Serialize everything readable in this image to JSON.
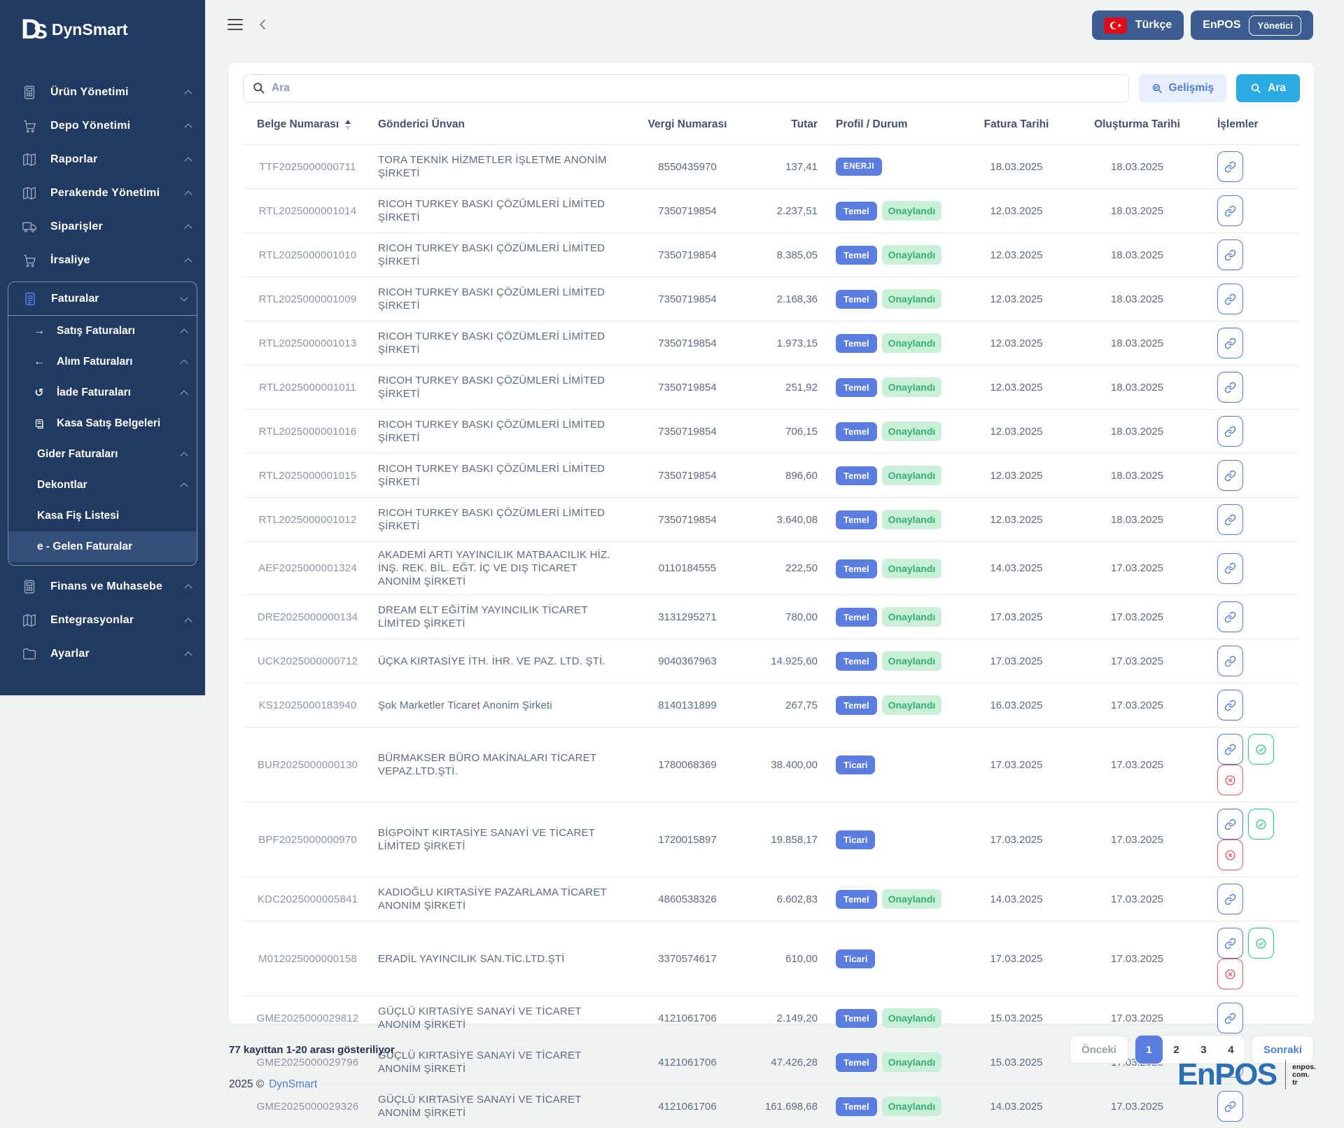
{
  "brand": {
    "logo_d": "D",
    "logo_s": "S",
    "name": "DynSmart",
    "footer_year": "2025 ©",
    "footer_brand": "DynSmart",
    "enpos_logo": "EnPOS",
    "enpos_domain_lines": [
      "enpos.",
      "com.",
      "tr"
    ]
  },
  "topbar": {
    "language_label": "Türkçe",
    "company_label": "EnPOS",
    "user_role_label": "Yönetici"
  },
  "search": {
    "placeholder": "Ara",
    "advanced_label": "Gelişmiş",
    "search_label": "Ara"
  },
  "sidebar": {
    "items_top": [
      {
        "label": "Ürün Yönetimi",
        "icon": "calculator",
        "chevron": true
      },
      {
        "label": "Depo Yönetimi",
        "icon": "cart",
        "chevron": true
      },
      {
        "label": "Raporlar",
        "icon": "map",
        "chevron": true
      },
      {
        "label": "Perakende Yönetimi",
        "icon": "map",
        "chevron": true
      },
      {
        "label": "Siparişler",
        "icon": "truck",
        "chevron": true
      },
      {
        "label": "İrsaliye",
        "icon": "cart",
        "chevron": true
      }
    ],
    "group": {
      "label": "Faturalar",
      "icon": "invoice",
      "chevron": true,
      "items": [
        {
          "label": "Satış Faturaları",
          "icon": "arrow-right",
          "chevron": true,
          "active": false
        },
        {
          "label": "Alım Faturaları",
          "icon": "arrow-left",
          "chevron": true,
          "active": false
        },
        {
          "label": "İade Faturaları",
          "icon": "rotate-left",
          "chevron": true,
          "active": false
        },
        {
          "label": "Kasa Satış Belgeleri",
          "icon": "receipt",
          "chevron": false,
          "active": false
        },
        {
          "label": "Gider Faturaları",
          "icon": null,
          "chevron": true,
          "active": false
        },
        {
          "label": "Dekontlar",
          "icon": null,
          "chevron": true,
          "active": false
        },
        {
          "label": "Kasa Fiş Listesi",
          "icon": null,
          "chevron": false,
          "active": false
        },
        {
          "label": "e - Gelen Faturalar",
          "icon": null,
          "chevron": false,
          "active": true
        }
      ]
    },
    "items_bottom": [
      {
        "label": "Finans ve Muhasebe",
        "icon": "calculator",
        "chevron": true
      },
      {
        "label": "Entegrasyonlar",
        "icon": "map",
        "chevron": true
      },
      {
        "label": "Ayarlar",
        "icon": "folder",
        "chevron": true
      }
    ]
  },
  "table": {
    "columns": [
      "Belge Numarası",
      "Gönderici Ünvan",
      "Vergi Numarası",
      "Tutar",
      "Profil / Durum",
      "Fatura Tarihi",
      "Oluşturma Tarihi",
      "İşlemler"
    ],
    "rows": [
      {
        "doc_no": "TTF2025000000711",
        "sender": "TORA TEKNİK HİZMETLER İŞLETME ANONİM ŞİRKETİ",
        "tax_no": "8550435970",
        "amount": "137,41",
        "profile": "ENERJI",
        "status": "",
        "invoice_date": "18.03.2025",
        "created_date": "18.03.2025",
        "actions": [
          "link"
        ]
      },
      {
        "doc_no": "RTL2025000001014",
        "sender": "RICOH TURKEY BASKI ÇÖZÜMLERİ LİMİTED ŞİRKETİ",
        "tax_no": "7350719854",
        "amount": "2.237,51",
        "profile": "Temel",
        "status": "Onaylandı",
        "invoice_date": "12.03.2025",
        "created_date": "18.03.2025",
        "actions": [
          "link"
        ]
      },
      {
        "doc_no": "RTL2025000001010",
        "sender": "RICOH TURKEY BASKI ÇÖZÜMLERİ LİMİTED ŞİRKETİ",
        "tax_no": "7350719854",
        "amount": "8.385,05",
        "profile": "Temel",
        "status": "Onaylandı",
        "invoice_date": "12.03.2025",
        "created_date": "18.03.2025",
        "actions": [
          "link"
        ]
      },
      {
        "doc_no": "RTL2025000001009",
        "sender": "RICOH TURKEY BASKI ÇÖZÜMLERİ LİMİTED ŞİRKETİ",
        "tax_no": "7350719854",
        "amount": "2.168,36",
        "profile": "Temel",
        "status": "Onaylandı",
        "invoice_date": "12.03.2025",
        "created_date": "18.03.2025",
        "actions": [
          "link"
        ]
      },
      {
        "doc_no": "RTL2025000001013",
        "sender": "RICOH TURKEY BASKI ÇÖZÜMLERİ LİMİTED ŞİRKETİ",
        "tax_no": "7350719854",
        "amount": "1.973,15",
        "profile": "Temel",
        "status": "Onaylandı",
        "invoice_date": "12.03.2025",
        "created_date": "18.03.2025",
        "actions": [
          "link"
        ]
      },
      {
        "doc_no": "RTL2025000001011",
        "sender": "RICOH TURKEY BASKI ÇÖZÜMLERİ LİMİTED ŞİRKETİ",
        "tax_no": "7350719854",
        "amount": "251,92",
        "profile": "Temel",
        "status": "Onaylandı",
        "invoice_date": "12.03.2025",
        "created_date": "18.03.2025",
        "actions": [
          "link"
        ]
      },
      {
        "doc_no": "RTL2025000001016",
        "sender": "RICOH TURKEY BASKI ÇÖZÜMLERİ LİMİTED ŞİRKETİ",
        "tax_no": "7350719854",
        "amount": "706,15",
        "profile": "Temel",
        "status": "Onaylandı",
        "invoice_date": "12.03.2025",
        "created_date": "18.03.2025",
        "actions": [
          "link"
        ]
      },
      {
        "doc_no": "RTL2025000001015",
        "sender": "RICOH TURKEY BASKI ÇÖZÜMLERİ LİMİTED ŞİRKETİ",
        "tax_no": "7350719854",
        "amount": "896,60",
        "profile": "Temel",
        "status": "Onaylandı",
        "invoice_date": "12.03.2025",
        "created_date": "18.03.2025",
        "actions": [
          "link"
        ]
      },
      {
        "doc_no": "RTL2025000001012",
        "sender": "RICOH TURKEY BASKI ÇÖZÜMLERİ LİMİTED ŞİRKETİ",
        "tax_no": "7350719854",
        "amount": "3.640,08",
        "profile": "Temel",
        "status": "Onaylandı",
        "invoice_date": "12.03.2025",
        "created_date": "18.03.2025",
        "actions": [
          "link"
        ]
      },
      {
        "doc_no": "AEF2025000001324",
        "sender": "AKADEMİ ARTI YAYINCILIK MATBAACILIK HİZ. İNŞ. REK. BİL. EĞT. İÇ VE DIŞ TİCARET ANONİM ŞİRKETİ",
        "tax_no": "0110184555",
        "amount": "222,50",
        "profile": "Temel",
        "status": "Onaylandı",
        "invoice_date": "14.03.2025",
        "created_date": "17.03.2025",
        "actions": [
          "link"
        ]
      },
      {
        "doc_no": "DRE2025000000134",
        "sender": "DREAM ELT EĞİTİM YAYINCILIK TİCARET LİMİTED ŞİRKETİ",
        "tax_no": "3131295271",
        "amount": "780,00",
        "profile": "Temel",
        "status": "Onaylandı",
        "invoice_date": "17.03.2025",
        "created_date": "17.03.2025",
        "actions": [
          "link"
        ]
      },
      {
        "doc_no": "UCK2025000000712",
        "sender": "ÜÇKA KIRTASİYE İTH. İHR. VE PAZ. LTD. ŞTİ.",
        "tax_no": "9040367963",
        "amount": "14.925,60",
        "profile": "Temel",
        "status": "Onaylandı",
        "invoice_date": "17.03.2025",
        "created_date": "17.03.2025",
        "actions": [
          "link"
        ]
      },
      {
        "doc_no": "KS12025000183940",
        "sender": "Şok Marketler Ticaret Anonim Şirketi",
        "tax_no": "8140131899",
        "amount": "267,75",
        "profile": "Temel",
        "status": "Onaylandı",
        "invoice_date": "16.03.2025",
        "created_date": "17.03.2025",
        "actions": [
          "link"
        ]
      },
      {
        "doc_no": "BUR2025000000130",
        "sender": "BÜRMAKSER BÜRO MAKİNALARI TİCARET VEPAZ.LTD.ŞTİ.",
        "tax_no": "1780068369",
        "amount": "38.400,00",
        "profile": "Ticari",
        "status": "",
        "invoice_date": "17.03.2025",
        "created_date": "17.03.2025",
        "actions": [
          "link",
          "approve",
          "reject"
        ]
      },
      {
        "doc_no": "BPF2025000000970",
        "sender": "BİGPOİNT KIRTASİYE SANAYİ VE TİCARET LİMİTED ŞİRKETİ",
        "tax_no": "1720015897",
        "amount": "19.858,17",
        "profile": "Ticari",
        "status": "",
        "invoice_date": "17.03.2025",
        "created_date": "17.03.2025",
        "actions": [
          "link",
          "approve",
          "reject"
        ]
      },
      {
        "doc_no": "KDC2025000005841",
        "sender": "KADIOĞLU KIRTASİYE PAZARLAMA TİCARET ANONİM ŞİRKETİ",
        "tax_no": "4860538326",
        "amount": "6.602,83",
        "profile": "Temel",
        "status": "Onaylandı",
        "invoice_date": "14.03.2025",
        "created_date": "17.03.2025",
        "actions": [
          "link"
        ]
      },
      {
        "doc_no": "M012025000000158",
        "sender": "ERADİL YAYINCILIK SAN.TİC.LTD.ŞTİ",
        "tax_no": "3370574617",
        "amount": "610,00",
        "profile": "Ticari",
        "status": "",
        "invoice_date": "17.03.2025",
        "created_date": "17.03.2025",
        "actions": [
          "link",
          "approve",
          "reject"
        ]
      },
      {
        "doc_no": "GME2025000029812",
        "sender": "GÜÇLÜ KIRTASİYE SANAYİ VE TİCARET ANONİM ŞİRKETİ",
        "tax_no": "4121061706",
        "amount": "2.149,20",
        "profile": "Temel",
        "status": "Onaylandı",
        "invoice_date": "15.03.2025",
        "created_date": "17.03.2025",
        "actions": [
          "link"
        ]
      },
      {
        "doc_no": "GME2025000029796",
        "sender": "GÜÇLÜ KIRTASİYE SANAYİ VE TİCARET ANONİM ŞİRKETİ",
        "tax_no": "4121061706",
        "amount": "47.426,28",
        "profile": "Temel",
        "status": "Onaylandı",
        "invoice_date": "15.03.2025",
        "created_date": "17.03.2025",
        "actions": [
          "link"
        ]
      },
      {
        "doc_no": "GME2025000029326",
        "sender": "GÜÇLÜ KIRTASİYE SANAYİ VE TİCARET ANONİM ŞİRKETİ",
        "tax_no": "4121061706",
        "amount": "161.698,68",
        "profile": "Temel",
        "status": "Onaylandı",
        "invoice_date": "14.03.2025",
        "created_date": "17.03.2025",
        "actions": [
          "link"
        ]
      }
    ]
  },
  "pagination": {
    "summary": "77 kayıttan 1-20 arası gösteriliyor",
    "prev_label": "Önceki",
    "pages": [
      "1",
      "2",
      "3",
      "4"
    ],
    "active_page": "1",
    "next_label": "Sonraki"
  },
  "colors": {
    "sidebar_bg": "#203a61",
    "sidebar_active": "#344f79",
    "topbar_button": "#3c5c92",
    "badge_blue": "#5b7de0",
    "badge_green_bg": "#c9efd9",
    "badge_green_text": "#35b070",
    "search_button": "#2babe2",
    "approve_green": "#2ecc71",
    "reject_red": "#f25757",
    "flag_red": "#e30a17",
    "enpos_blue": "#2b70b6"
  }
}
